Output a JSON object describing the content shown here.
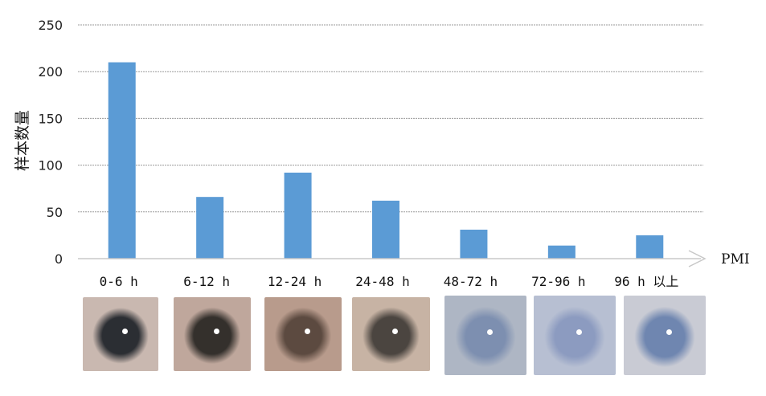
{
  "chart_data": {
    "type": "bar",
    "ylabel": "样本数量",
    "xlabel": "PMI",
    "categories": [
      "0-6 h",
      "6-12 h",
      "12-24 h",
      "24-48 h",
      "48-72 h",
      "72-96 h",
      "96 h 以上"
    ],
    "values": [
      210,
      66,
      92,
      62,
      31,
      14,
      25
    ],
    "ylim": [
      0,
      250
    ],
    "yticks": [
      0,
      50,
      100,
      150,
      200,
      250
    ],
    "grid": true,
    "bar_color": "#5b9bd5"
  },
  "eye_images": [
    {
      "name": "eye-photo-0-6h",
      "tint": "#2b2e33",
      "sclera": "#c9b8b0"
    },
    {
      "name": "eye-photo-6-12h",
      "tint": "#34302c",
      "sclera": "#bfa79c"
    },
    {
      "name": "eye-photo-12-24h",
      "tint": "#5c4a40",
      "sclera": "#b89b8c"
    },
    {
      "name": "eye-photo-24-48h",
      "tint": "#4b4540",
      "sclera": "#c7b3a4"
    },
    {
      "name": "eye-photo-48-72h",
      "tint": "#7d8fb0",
      "sclera": "#aeb6c4"
    },
    {
      "name": "eye-photo-72-96h",
      "tint": "#8c9bc0",
      "sclera": "#b7bfd2"
    },
    {
      "name": "eye-photo-96h-plus",
      "tint": "#6f86b0",
      "sclera": "#c9cbd4"
    }
  ]
}
